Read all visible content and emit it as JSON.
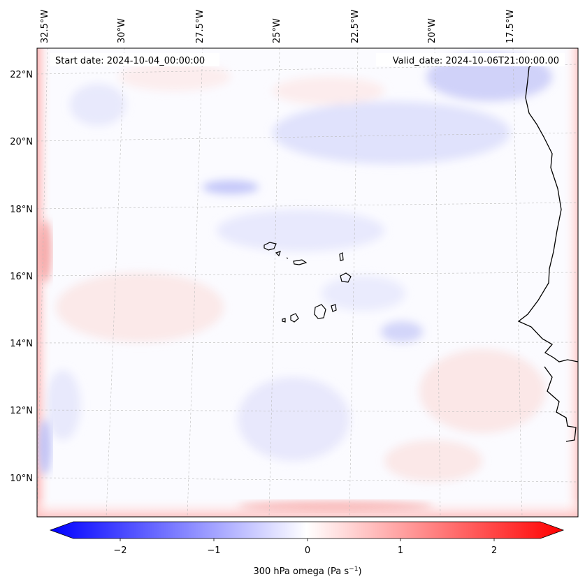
{
  "map": {
    "start_date_label": "Start date: 2024-10-04_00:00:00",
    "valid_date_label": "Valid_date: 2024-10-06T21:00:00.00",
    "lon_labels": [
      "32.5°W",
      "30°W",
      "27.5°W",
      "25°W",
      "22.5°W",
      "20°W",
      "17.5°W"
    ],
    "lat_labels": [
      "22°N",
      "20°N",
      "18°N",
      "16°N",
      "14°N",
      "12°N",
      "10°N"
    ],
    "field": "300 hPa omega",
    "colormap": "bwr",
    "vmin": -2.6,
    "vmax": 2.6,
    "gridlines": true
  },
  "colorbar": {
    "ticks": [
      "−2",
      "−1",
      "0",
      "1",
      "2"
    ],
    "label_prefix": "300 hPa omega (Pa s",
    "label_exp": "−1",
    "label_suffix": ")",
    "colors": {
      "low": "#0000ff",
      "mid": "#ffffff",
      "high": "#ff0000"
    }
  }
}
